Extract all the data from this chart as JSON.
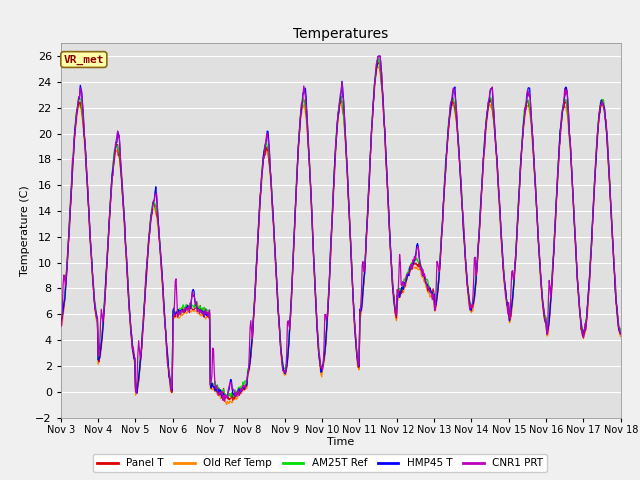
{
  "title": "Temperatures",
  "xlabel": "Time",
  "ylabel": "Temperature (C)",
  "ylim": [
    -2,
    27
  ],
  "background_color": "#f0f0f0",
  "plot_bg_color": "#e0e0e0",
  "grid_color": "#ffffff",
  "annotation_text": "VR_met",
  "annotation_bg": "#ffffaa",
  "annotation_border": "#8b6914",
  "annotation_text_color": "#8b0000",
  "tick_labels": [
    "Nov 3",
    "Nov 4",
    "Nov 5",
    "Nov 6",
    "Nov 7",
    "Nov 8",
    "Nov 9",
    "Nov 10",
    "Nov 11",
    "Nov 12",
    "Nov 13",
    "Nov 14",
    "Nov 15",
    "Nov 16",
    "Nov 17",
    "Nov 18"
  ],
  "legend_entries": [
    "Panel T",
    "Old Ref Temp",
    "AM25T Ref",
    "HMP45 T",
    "CNR1 PRT"
  ],
  "colors": {
    "Panel T": "#dd0000",
    "Old Ref Temp": "#ff8800",
    "AM25T Ref": "#00dd00",
    "HMP45 T": "#0000ff",
    "CNR1 PRT": "#bb00bb"
  },
  "num_days": 15,
  "pts_per_day": 48,
  "day_peaks": [
    22.5,
    19.0,
    14.5,
    6.5,
    -0.5,
    19.0,
    22.5,
    22.5,
    25.5,
    10.0,
    22.5,
    22.5,
    22.5,
    22.5,
    25.0
  ],
  "night_lows": [
    5.5,
    2.5,
    0.0,
    6.0,
    0.5,
    1.5,
    1.5,
    2.0,
    6.0,
    7.5,
    6.5,
    6.5,
    5.5,
    4.5,
    5.5
  ]
}
